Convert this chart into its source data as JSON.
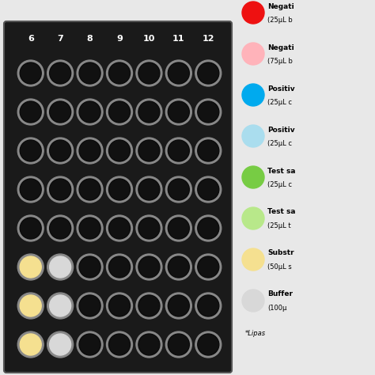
{
  "background_color": "#e8e8e8",
  "plate_bg": "#1a1a1a",
  "n_cols": 7,
  "n_rows": 8,
  "col_labels": [
    "6",
    "7",
    "8",
    "9",
    "10",
    "11",
    "12"
  ],
  "well_filled": {
    "0,5": "#f5e090",
    "0,6": "#f5e090",
    "0,7": "#f5e090",
    "1,5": "#d8d8d8",
    "1,6": "#d8d8d8",
    "1,7": "#d8d8d8"
  },
  "legend_items": [
    {
      "color": "#ee1111",
      "label1": "Negati",
      "label2": "(25μL b"
    },
    {
      "color": "#ffb3ba",
      "label1": "Negati",
      "label2": "(75μL b"
    },
    {
      "color": "#00aaee",
      "label1": "Positiv",
      "label2": "(25μL c"
    },
    {
      "color": "#aaddee",
      "label1": "Positiv",
      "label2": "(25μL c"
    },
    {
      "color": "#77cc44",
      "label1": "Test sa",
      "label2": "(25μL c"
    },
    {
      "color": "#b8e88a",
      "label1": "Test sa",
      "label2": "(25μL t"
    },
    {
      "color": "#f5e090",
      "label1": "Substr",
      "label2": "(50μL s"
    },
    {
      "color": "#d8d8d8",
      "label1": "Buffer",
      "label2": "(100μ"
    }
  ],
  "legend_note": "*Lipas",
  "fig_w": 4.74,
  "fig_h": 4.74,
  "dpi": 100
}
